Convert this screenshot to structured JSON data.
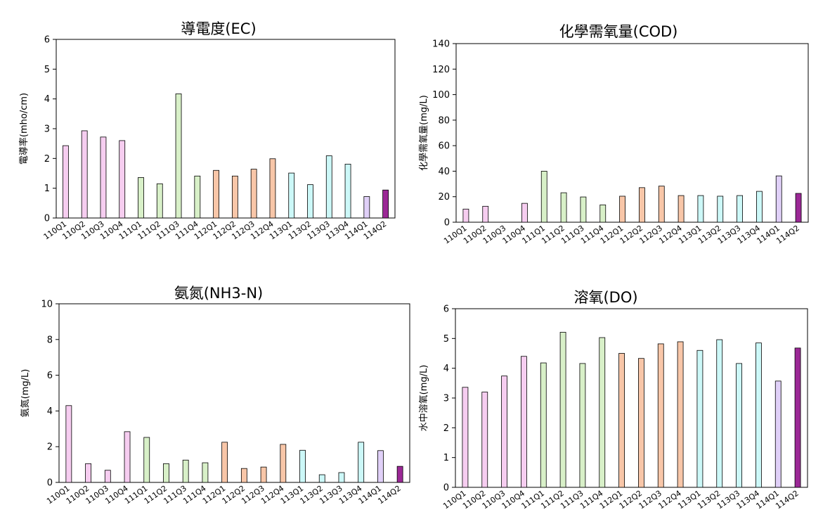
{
  "categories": [
    "110Q1",
    "110Q2",
    "110Q3",
    "110Q4",
    "111Q1",
    "111Q2",
    "111Q3",
    "111Q4",
    "112Q1",
    "112Q2",
    "112Q3",
    "112Q4",
    "113Q1",
    "113Q2",
    "113Q3",
    "113Q4",
    "114Q1",
    "114Q2"
  ],
  "bar_colors": [
    "#f6cdf0",
    "#f6cdf0",
    "#f6cdf0",
    "#f6cdf0",
    "#d8f0c8",
    "#d8f0c8",
    "#d8f0c8",
    "#d8f0c8",
    "#f8c6a8",
    "#f8c6a8",
    "#f8c6a8",
    "#f8c6a8",
    "#ccf8f8",
    "#ccf8f8",
    "#ccf8f8",
    "#ccf8f8",
    "#e0d0f8",
    "#9b2896"
  ],
  "chart_data": [
    {
      "type": "bar",
      "title": "導電度(EC)",
      "xlabel": "",
      "ylabel": "電導率(mho/cm)",
      "ylim": [
        0,
        6
      ],
      "yticks": [
        0,
        1,
        2,
        3,
        4,
        5,
        6
      ],
      "grid": false,
      "values": [
        2.43,
        2.93,
        2.72,
        2.6,
        1.36,
        1.15,
        4.17,
        1.41,
        1.6,
        1.41,
        1.64,
        1.99,
        1.51,
        1.12,
        2.09,
        1.81,
        0.72,
        0.94
      ]
    },
    {
      "type": "bar",
      "title": "化學需氧量(COD)",
      "xlabel": "",
      "ylabel": "化學需氧量(mg/L)",
      "ylim": [
        0,
        140
      ],
      "yticks": [
        0,
        20,
        40,
        60,
        80,
        100,
        120,
        140
      ],
      "grid": false,
      "values": [
        10.3,
        12.5,
        0,
        14.8,
        40.0,
        23.1,
        19.8,
        13.6,
        20.4,
        27.1,
        28.3,
        20.9,
        20.9,
        20.4,
        20.9,
        24.2,
        36.3,
        22.6
      ]
    },
    {
      "type": "bar",
      "title": "氨氮(NH3-N)",
      "xlabel": "",
      "ylabel": "氨氮(mg/L)",
      "ylim": [
        0,
        10
      ],
      "yticks": [
        0,
        2,
        4,
        6,
        8,
        10
      ],
      "grid": false,
      "values": [
        4.3,
        1.05,
        0.68,
        2.84,
        2.52,
        1.05,
        1.25,
        1.1,
        2.25,
        0.78,
        0.86,
        2.13,
        1.8,
        0.43,
        0.55,
        2.25,
        1.78,
        0.9
      ]
    },
    {
      "type": "bar",
      "title": "溶氧(DO)",
      "xlabel": "",
      "ylabel": "水中溶氧(mg/L)",
      "ylim": [
        0,
        6
      ],
      "yticks": [
        0,
        1,
        2,
        3,
        4,
        5,
        6
      ],
      "grid": false,
      "values": [
        3.36,
        3.2,
        3.74,
        4.4,
        4.18,
        5.21,
        4.16,
        5.03,
        4.5,
        4.33,
        4.82,
        4.89,
        4.6,
        4.96,
        4.16,
        4.85,
        3.57,
        4.68
      ]
    }
  ]
}
